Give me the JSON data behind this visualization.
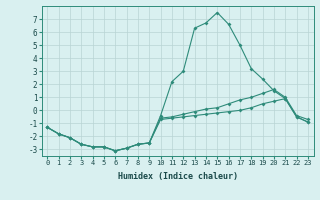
{
  "xlabel": "Humidex (Indice chaleur)",
  "x": [
    0,
    1,
    2,
    3,
    4,
    5,
    6,
    7,
    8,
    9,
    10,
    11,
    12,
    13,
    14,
    15,
    16,
    17,
    18,
    19,
    20,
    21,
    22,
    23
  ],
  "line_max": [
    -1.3,
    -1.8,
    -2.1,
    -2.6,
    -2.8,
    -2.8,
    -3.1,
    -2.9,
    -2.6,
    -2.5,
    -0.4,
    2.2,
    3.0,
    6.3,
    6.7,
    7.5,
    6.6,
    5.0,
    3.2,
    2.4,
    1.5,
    0.9,
    -0.5,
    -0.9
  ],
  "line_mid": [
    -1.3,
    -1.8,
    -2.1,
    -2.6,
    -2.8,
    -2.8,
    -3.1,
    -2.9,
    -2.6,
    -2.5,
    -0.6,
    -0.5,
    -0.3,
    -0.1,
    0.1,
    0.2,
    0.5,
    0.8,
    1.0,
    1.3,
    1.6,
    1.0,
    -0.4,
    -0.7
  ],
  "line_min": [
    -1.3,
    -1.8,
    -2.1,
    -2.6,
    -2.8,
    -2.8,
    -3.1,
    -2.9,
    -2.6,
    -2.5,
    -0.7,
    -0.6,
    -0.5,
    -0.4,
    -0.3,
    -0.2,
    -0.1,
    0.0,
    0.2,
    0.5,
    0.7,
    0.9,
    -0.5,
    -0.9
  ],
  "line_color": "#2e8b7a",
  "bg_color": "#d9f0f0",
  "grid_color": "#b8d4d4",
  "ylim": [
    -3.5,
    8.0
  ],
  "xlim": [
    -0.5,
    23.5
  ],
  "yticks": [
    -3,
    -2,
    -1,
    0,
    1,
    2,
    3,
    4,
    5,
    6,
    7
  ],
  "xticks": [
    0,
    1,
    2,
    3,
    4,
    5,
    6,
    7,
    8,
    9,
    10,
    11,
    12,
    13,
    14,
    15,
    16,
    17,
    18,
    19,
    20,
    21,
    22,
    23
  ],
  "ylabel_fontsize": 5.5,
  "xlabel_fontsize": 6.0,
  "tick_labelsize": 5.0
}
